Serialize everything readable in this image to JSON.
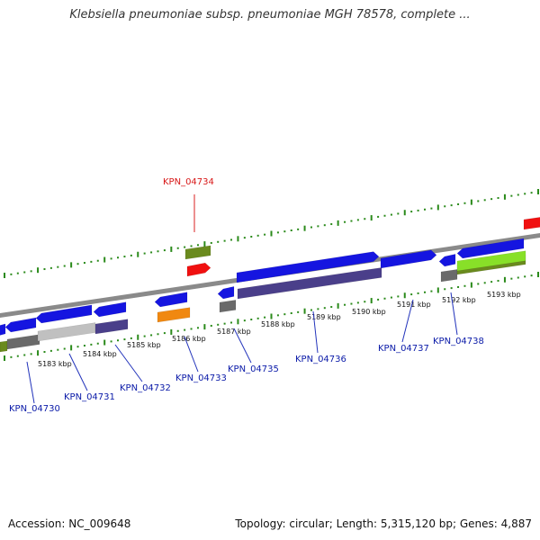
{
  "title": "Klebsiella pneumoniae subsp. pneumoniae MGH 78578, complete ...",
  "footer": {
    "accession": "Accession: NC_009648",
    "topology": "Topology: circular; Length: 5,315,120 bp; Genes: 4,887"
  },
  "colors": {
    "backbone": "#8a8a8a",
    "tick": "#2a8a1a",
    "label_default": "#0a1aa8",
    "label_highlight": "#d81818",
    "leader": "#2233bb",
    "leader_highlight": "#d82020",
    "gene_blue": "#1515e0",
    "gene_navy": "#4a3f8a",
    "gene_olive": "#6a8a1e",
    "gene_red": "#f01010",
    "gene_orange": "#f08810",
    "gene_gray": "#6a6a6a",
    "gene_silver": "#c0c0c0",
    "gene_lime": "#88e028"
  },
  "ticks": [
    {
      "label": "5183 kbp"
    },
    {
      "label": "5184 kbp"
    },
    {
      "label": "5185 kbp"
    },
    {
      "label": "5186 kbp"
    },
    {
      "label": "5187 kbp"
    },
    {
      "label": "5188 kbp"
    },
    {
      "label": "5189 kbp"
    },
    {
      "label": "5190 kbp"
    },
    {
      "label": "5191 kbp"
    },
    {
      "label": "5192 kbp"
    },
    {
      "label": "5193 kbp"
    }
  ],
  "gene_labels": [
    {
      "text": "KPN_04730",
      "highlight": false
    },
    {
      "text": "KPN_04731",
      "highlight": false
    },
    {
      "text": "KPN_04732",
      "highlight": false
    },
    {
      "text": "KPN_04733",
      "highlight": false
    },
    {
      "text": "KPN_04734",
      "highlight": true
    },
    {
      "text": "KPN_04735",
      "highlight": false
    },
    {
      "text": "KPN_04736",
      "highlight": false
    },
    {
      "text": "KPN_04737",
      "highlight": false
    },
    {
      "text": "KPN_04738",
      "highlight": false
    }
  ]
}
